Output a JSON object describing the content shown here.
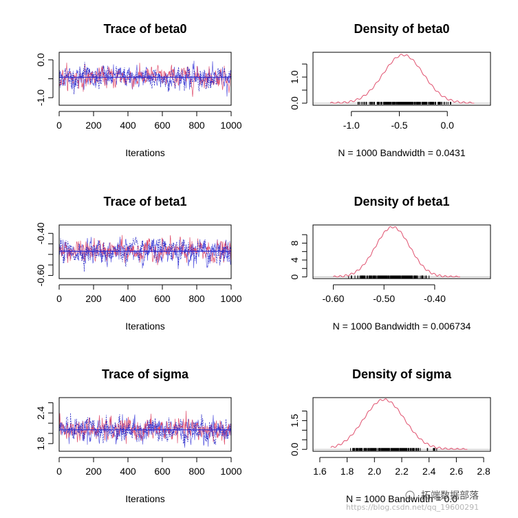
{
  "chart_data": [
    {
      "type": "line",
      "title": "Trace of beta0",
      "xlabel": "Iterations",
      "xlim": [
        0,
        1000
      ],
      "ylim": [
        -1.2,
        0.2
      ],
      "xticks": [
        0,
        200,
        400,
        600,
        800,
        1000
      ],
      "yticks": [
        -1.0,
        -0.5,
        0.0
      ],
      "ytick_labels": [
        "-1.0",
        "",
        "0.0"
      ],
      "chains": 3,
      "center": -0.46,
      "spread": 0.16,
      "colors": [
        "#5a5ae0",
        "#e0506e",
        "#3030c8"
      ]
    },
    {
      "type": "area",
      "title": "Density of beta0",
      "xlabel": "N = 1000   Bandwidth = 0.0431",
      "xlim": [
        -1.4,
        0.45
      ],
      "ylim": [
        -0.08,
        1.95
      ],
      "xticks": [
        -1.0,
        -0.5,
        0.0
      ],
      "xtick_labels": [
        "-1.0",
        "-0.5",
        "0.0"
      ],
      "yticks": [
        0.0,
        0.5,
        1.0,
        1.5
      ],
      "ytick_labels": [
        "0.0",
        "",
        "1.0",
        ""
      ],
      "mean": -0.46,
      "sd": 0.21,
      "peak": 1.85,
      "support": [
        -1.22,
        0.28
      ],
      "rug": [
        -0.95,
        0.05
      ],
      "color": "#e0506e"
    },
    {
      "type": "line",
      "title": "Trace of beta1",
      "xlabel": "Iterations",
      "xlim": [
        0,
        1000
      ],
      "ylim": [
        -0.615,
        -0.36
      ],
      "xticks": [
        0,
        200,
        400,
        600,
        800,
        1000
      ],
      "yticks": [
        -0.6,
        -0.55,
        -0.5,
        -0.45,
        -0.4
      ],
      "ytick_labels": [
        "-0.60",
        "",
        "",
        "",
        "-0.40"
      ],
      "chains": 3,
      "center": -0.485,
      "spread": 0.03,
      "colors": [
        "#5a5ae0",
        "#e0506e",
        "#3030c8"
      ]
    },
    {
      "type": "area",
      "title": "Density of beta1",
      "xlabel": "N = 1000   Bandwidth = 0.006734",
      "xlim": [
        -0.64,
        -0.29
      ],
      "ylim": [
        -0.4,
        12.3
      ],
      "xticks": [
        -0.6,
        -0.5,
        -0.4
      ],
      "xtick_labels": [
        "-0.60",
        "-0.50",
        "-0.40"
      ],
      "yticks": [
        0,
        2,
        4,
        6,
        8,
        10
      ],
      "ytick_labels": [
        "0",
        "",
        "4",
        "",
        "8",
        ""
      ],
      "mean": -0.483,
      "sd": 0.034,
      "peak": 11.8,
      "support": [
        -0.6,
        -0.35
      ],
      "rug": [
        -0.57,
        -0.37
      ],
      "color": "#e0506e"
    },
    {
      "type": "line",
      "title": "Trace of sigma",
      "xlabel": "Iterations",
      "xlim": [
        0,
        1000
      ],
      "ylim": [
        1.65,
        2.7
      ],
      "xticks": [
        0,
        200,
        400,
        600,
        800,
        1000
      ],
      "yticks": [
        1.8,
        2.0,
        2.2,
        2.4,
        2.6
      ],
      "ytick_labels": [
        "1.8",
        "",
        "",
        "2.4",
        ""
      ],
      "chains": 3,
      "center": 2.07,
      "spread": 0.13,
      "colors": [
        "#5a5ae0",
        "#e0506e",
        "#3030c8"
      ]
    },
    {
      "type": "area",
      "title": "Density of sigma",
      "xlabel": "N = 1000   Bandwidth = 0.0",
      "xlim": [
        1.55,
        2.85
      ],
      "ylim": [
        -0.1,
        2.7
      ],
      "xticks": [
        1.6,
        1.8,
        2.0,
        2.2,
        2.4,
        2.6,
        2.8
      ],
      "xtick_labels": [
        "1.6",
        "1.8",
        "2.0",
        "2.2",
        "2.4",
        "2.6",
        "2.8"
      ],
      "yticks": [
        0.0,
        0.5,
        1.0,
        1.5,
        2.0
      ],
      "ytick_labels": [
        "0.0",
        "",
        "",
        "1.5",
        ""
      ],
      "mean": 2.07,
      "sd": 0.15,
      "peak": 2.6,
      "support": [
        1.68,
        2.68
      ],
      "rug": [
        1.8,
        2.58
      ],
      "color": "#e0506e"
    }
  ],
  "watermark": {
    "brand": "拓端数据部落",
    "url": "https://blog.csdn.net/qq_19600291"
  }
}
